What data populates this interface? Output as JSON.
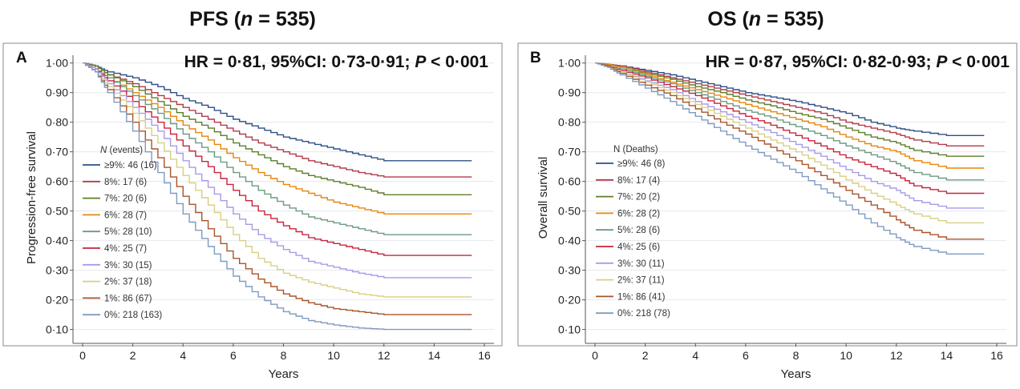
{
  "chart_data": [
    {
      "type": "line",
      "panel": "A",
      "title": "PFS (n = 535)",
      "title_parts": [
        "PFS (",
        "n",
        " = 535)"
      ],
      "annotation_parts": [
        "HR = 0·81, 95%CI: 0·73-0·91; ",
        "P",
        " < 0·001"
      ],
      "xlabel": "Years",
      "ylabel": "Progression-free survival",
      "xlim": [
        0,
        16
      ],
      "ylim": [
        0.08,
        1.01
      ],
      "xticks": [
        "0",
        "2",
        "4",
        "6",
        "8",
        "10",
        "12",
        "14",
        "16"
      ],
      "yticks": [
        "0·10",
        "0·20",
        "0·30",
        "0·40",
        "0·50",
        "0·60",
        "0·70",
        "0·80",
        "0·90",
        "1·00"
      ],
      "grid": "horizontal",
      "legend_title_parts": [
        "N",
        " (events)"
      ],
      "legend_position": "left",
      "series": [
        {
          "name": "≥9%: 46 (16)",
          "color": "#2e4f86",
          "x": [
            0,
            0.5,
            1,
            2,
            3,
            4,
            5,
            6,
            7,
            8,
            9,
            10,
            11,
            12,
            15.5
          ],
          "y": [
            1.0,
            0.99,
            0.97,
            0.95,
            0.92,
            0.88,
            0.85,
            0.81,
            0.78,
            0.75,
            0.73,
            0.71,
            0.69,
            0.67,
            0.67
          ]
        },
        {
          "name": "8%: 17 (6)",
          "color": "#b23a48",
          "x": [
            0,
            0.5,
            1,
            2,
            3,
            4,
            5,
            6,
            7,
            8,
            9,
            10,
            11,
            12,
            15.5
          ],
          "y": [
            1.0,
            0.99,
            0.96,
            0.93,
            0.89,
            0.85,
            0.81,
            0.77,
            0.73,
            0.7,
            0.67,
            0.65,
            0.63,
            0.615,
            0.615
          ]
        },
        {
          "name": "7%: 20 (6)",
          "color": "#5e7e2a",
          "x": [
            0,
            0.5,
            1,
            2,
            3,
            4,
            5,
            6,
            7,
            8,
            9,
            10,
            11,
            12,
            15.5
          ],
          "y": [
            1.0,
            0.99,
            0.96,
            0.92,
            0.87,
            0.82,
            0.78,
            0.73,
            0.69,
            0.65,
            0.62,
            0.6,
            0.58,
            0.555,
            0.555
          ]
        },
        {
          "name": "6%: 28 (7)",
          "color": "#e8860c",
          "x": [
            0,
            0.5,
            1,
            2,
            3,
            4,
            5,
            6,
            7,
            8,
            9,
            10,
            11,
            12,
            15.5
          ],
          "y": [
            1.0,
            0.98,
            0.95,
            0.9,
            0.85,
            0.79,
            0.74,
            0.68,
            0.63,
            0.59,
            0.56,
            0.53,
            0.51,
            0.49,
            0.49
          ]
        },
        {
          "name": "5%: 28 (10)",
          "color": "#6c9a80",
          "x": [
            0,
            0.5,
            1,
            2,
            3,
            4,
            5,
            6,
            7,
            8,
            9,
            10,
            11,
            12,
            15.5
          ],
          "y": [
            1.0,
            0.98,
            0.95,
            0.89,
            0.83,
            0.76,
            0.7,
            0.63,
            0.57,
            0.52,
            0.48,
            0.46,
            0.44,
            0.42,
            0.42
          ]
        },
        {
          "name": "4%: 25 (7)",
          "color": "#c8243c",
          "x": [
            0,
            0.5,
            1,
            2,
            3,
            4,
            5,
            6,
            7,
            8,
            9,
            10,
            11,
            12,
            15.5
          ],
          "y": [
            1.0,
            0.98,
            0.94,
            0.87,
            0.8,
            0.72,
            0.65,
            0.57,
            0.5,
            0.45,
            0.41,
            0.39,
            0.37,
            0.35,
            0.35
          ]
        },
        {
          "name": "3%: 30 (15)",
          "color": "#a99ae6",
          "x": [
            0,
            0.5,
            1,
            2,
            3,
            4,
            5,
            6,
            7,
            8,
            9,
            10,
            11,
            12,
            15.5
          ],
          "y": [
            1.0,
            0.98,
            0.93,
            0.85,
            0.77,
            0.67,
            0.58,
            0.49,
            0.42,
            0.37,
            0.33,
            0.31,
            0.29,
            0.275,
            0.275
          ]
        },
        {
          "name": "2%: 37 (18)",
          "color": "#d9cf85",
          "x": [
            0,
            0.5,
            1,
            2,
            3,
            4,
            5,
            6,
            7,
            8,
            9,
            10,
            11,
            12,
            15.5
          ],
          "y": [
            1.0,
            0.97,
            0.92,
            0.83,
            0.73,
            0.62,
            0.52,
            0.42,
            0.34,
            0.29,
            0.26,
            0.24,
            0.22,
            0.21,
            0.21
          ]
        },
        {
          "name": "1%: 86 (67)",
          "color": "#a8542a",
          "x": [
            0,
            0.5,
            1,
            2,
            3,
            4,
            5,
            6,
            7,
            8,
            9,
            10,
            11,
            12,
            15.5
          ],
          "y": [
            1.0,
            0.97,
            0.91,
            0.8,
            0.68,
            0.55,
            0.44,
            0.34,
            0.27,
            0.22,
            0.19,
            0.17,
            0.16,
            0.15,
            0.15
          ]
        },
        {
          "name": "0%: 218 (163)",
          "color": "#7f9bbf",
          "x": [
            0,
            0.5,
            1,
            2,
            3,
            4,
            5,
            6,
            7,
            8,
            9,
            10,
            11,
            12,
            15.5
          ],
          "y": [
            1.0,
            0.97,
            0.9,
            0.77,
            0.63,
            0.49,
            0.38,
            0.28,
            0.21,
            0.16,
            0.13,
            0.115,
            0.105,
            0.1,
            0.1
          ]
        }
      ]
    },
    {
      "type": "line",
      "panel": "B",
      "title": "OS (n = 535)",
      "title_parts": [
        "OS (",
        "n",
        " = 535)"
      ],
      "annotation_parts": [
        "HR = 0·87, 95%CI: 0·82-0·93; ",
        "P",
        " < 0·001"
      ],
      "xlabel": "Years",
      "ylabel": "Overall survival",
      "xlim": [
        0,
        16
      ],
      "ylim": [
        0.08,
        1.01
      ],
      "xticks": [
        "0",
        "2",
        "4",
        "6",
        "8",
        "10",
        "12",
        "14",
        "16"
      ],
      "yticks": [
        "0·10",
        "0·20",
        "0·30",
        "0·40",
        "0·50",
        "0·60",
        "0·70",
        "0·80",
        "0·90",
        "1·00"
      ],
      "grid": "horizontal",
      "legend_title_parts": [
        "N (Deaths)"
      ],
      "legend_position": "left",
      "series": [
        {
          "name": "≥9%: 46 (8)",
          "color": "#2e4f86",
          "x": [
            0,
            0.5,
            1,
            2,
            3,
            4,
            5,
            6,
            7,
            8,
            9,
            10,
            11,
            12,
            12.7,
            14,
            15.5
          ],
          "y": [
            1.0,
            0.995,
            0.99,
            0.975,
            0.96,
            0.94,
            0.92,
            0.9,
            0.885,
            0.87,
            0.85,
            0.83,
            0.8,
            0.78,
            0.77,
            0.755,
            0.755
          ]
        },
        {
          "name": "8%: 17 (4)",
          "color": "#b23a48",
          "x": [
            0,
            0.5,
            1,
            2,
            3,
            4,
            5,
            6,
            7,
            8,
            9,
            10,
            11,
            12,
            12.7,
            14,
            15.5
          ],
          "y": [
            1.0,
            0.995,
            0.99,
            0.97,
            0.95,
            0.93,
            0.91,
            0.89,
            0.87,
            0.85,
            0.83,
            0.8,
            0.78,
            0.76,
            0.74,
            0.72,
            0.72
          ]
        },
        {
          "name": "7%: 20 (2)",
          "color": "#5e7e2a",
          "x": [
            0,
            0.5,
            1,
            2,
            3,
            4,
            5,
            6,
            7,
            8,
            9,
            10,
            11,
            12,
            12.7,
            14,
            15.5
          ],
          "y": [
            1.0,
            0.995,
            0.985,
            0.965,
            0.945,
            0.92,
            0.9,
            0.875,
            0.855,
            0.83,
            0.81,
            0.78,
            0.75,
            0.73,
            0.705,
            0.685,
            0.685
          ]
        },
        {
          "name": "6%: 28 (2)",
          "color": "#e8860c",
          "x": [
            0,
            0.5,
            1,
            2,
            3,
            4,
            5,
            6,
            7,
            8,
            9,
            10,
            11,
            12,
            12.7,
            14,
            15.5
          ],
          "y": [
            1.0,
            0.995,
            0.985,
            0.96,
            0.935,
            0.91,
            0.885,
            0.86,
            0.835,
            0.81,
            0.785,
            0.75,
            0.72,
            0.7,
            0.67,
            0.645,
            0.645
          ]
        },
        {
          "name": "5%: 28 (6)",
          "color": "#6c9a80",
          "x": [
            0,
            0.5,
            1,
            2,
            3,
            4,
            5,
            6,
            7,
            8,
            9,
            10,
            11,
            12,
            12.7,
            14,
            15.5
          ],
          "y": [
            1.0,
            0.99,
            0.98,
            0.955,
            0.93,
            0.9,
            0.87,
            0.84,
            0.815,
            0.785,
            0.755,
            0.72,
            0.69,
            0.66,
            0.63,
            0.605,
            0.605
          ]
        },
        {
          "name": "4%: 25 (6)",
          "color": "#c8243c",
          "x": [
            0,
            0.5,
            1,
            2,
            3,
            4,
            5,
            6,
            7,
            8,
            9,
            10,
            11,
            12,
            12.7,
            14,
            15.5
          ],
          "y": [
            1.0,
            0.99,
            0.975,
            0.95,
            0.92,
            0.89,
            0.855,
            0.82,
            0.79,
            0.755,
            0.72,
            0.68,
            0.65,
            0.62,
            0.585,
            0.56,
            0.56
          ]
        },
        {
          "name": "3%: 30 (11)",
          "color": "#a99ae6",
          "x": [
            0,
            0.5,
            1,
            2,
            3,
            4,
            5,
            6,
            7,
            8,
            9,
            10,
            11,
            12,
            12.7,
            14,
            15.5
          ],
          "y": [
            1.0,
            0.99,
            0.97,
            0.94,
            0.91,
            0.87,
            0.835,
            0.8,
            0.765,
            0.725,
            0.685,
            0.64,
            0.6,
            0.57,
            0.535,
            0.51,
            0.51
          ]
        },
        {
          "name": "2%: 37 (11)",
          "color": "#d9cf85",
          "x": [
            0,
            0.5,
            1,
            2,
            3,
            4,
            5,
            6,
            7,
            8,
            9,
            10,
            11,
            12,
            12.7,
            14,
            15.5
          ],
          "y": [
            1.0,
            0.99,
            0.97,
            0.935,
            0.9,
            0.86,
            0.82,
            0.78,
            0.74,
            0.7,
            0.655,
            0.605,
            0.56,
            0.52,
            0.49,
            0.46,
            0.46
          ]
        },
        {
          "name": "1%: 86 (41)",
          "color": "#a8542a",
          "x": [
            0,
            0.5,
            1,
            2,
            3,
            4,
            5,
            6,
            7,
            8,
            9,
            10,
            11,
            12,
            12.7,
            14,
            15.5
          ],
          "y": [
            1.0,
            0.99,
            0.965,
            0.925,
            0.89,
            0.845,
            0.8,
            0.76,
            0.715,
            0.67,
            0.62,
            0.57,
            0.52,
            0.47,
            0.435,
            0.405,
            0.405
          ]
        },
        {
          "name": "0%: 218 (78)",
          "color": "#7f9bbf",
          "x": [
            0,
            0.5,
            1,
            2,
            3,
            4,
            5,
            6,
            7,
            8,
            9,
            10,
            11,
            12,
            12.7,
            14,
            15.5
          ],
          "y": [
            1.0,
            0.985,
            0.96,
            0.915,
            0.87,
            0.82,
            0.77,
            0.72,
            0.675,
            0.63,
            0.575,
            0.52,
            0.46,
            0.41,
            0.38,
            0.355,
            0.355
          ]
        }
      ]
    }
  ]
}
